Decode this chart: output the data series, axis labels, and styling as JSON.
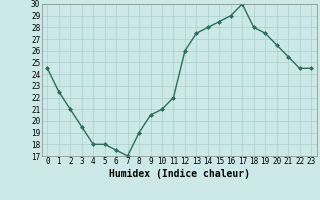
{
  "x": [
    0,
    1,
    2,
    3,
    4,
    5,
    6,
    7,
    8,
    9,
    10,
    11,
    12,
    13,
    14,
    15,
    16,
    17,
    18,
    19,
    20,
    21,
    22,
    23
  ],
  "y": [
    24.5,
    22.5,
    21.0,
    19.5,
    18.0,
    18.0,
    17.5,
    17.0,
    19.0,
    20.5,
    21.0,
    22.0,
    26.0,
    27.5,
    28.0,
    28.5,
    29.0,
    30.0,
    28.0,
    27.5,
    26.5,
    25.5,
    24.5,
    24.5
  ],
  "line_color": "#2d6e5e",
  "marker": "D",
  "marker_size": 2,
  "bg_color": "#cce8e8",
  "grid_color": "#aacfcf",
  "xlabel": "Humidex (Indice chaleur)",
  "ylim": [
    17,
    30
  ],
  "xlim": [
    -0.5,
    23.5
  ],
  "yticks": [
    17,
    18,
    19,
    20,
    21,
    22,
    23,
    24,
    25,
    26,
    27,
    28,
    29,
    30
  ],
  "xticks": [
    0,
    1,
    2,
    3,
    4,
    5,
    6,
    7,
    8,
    9,
    10,
    11,
    12,
    13,
    14,
    15,
    16,
    17,
    18,
    19,
    20,
    21,
    22,
    23
  ],
  "tick_fontsize": 5.5,
  "xlabel_fontsize": 7,
  "linewidth": 1.0
}
